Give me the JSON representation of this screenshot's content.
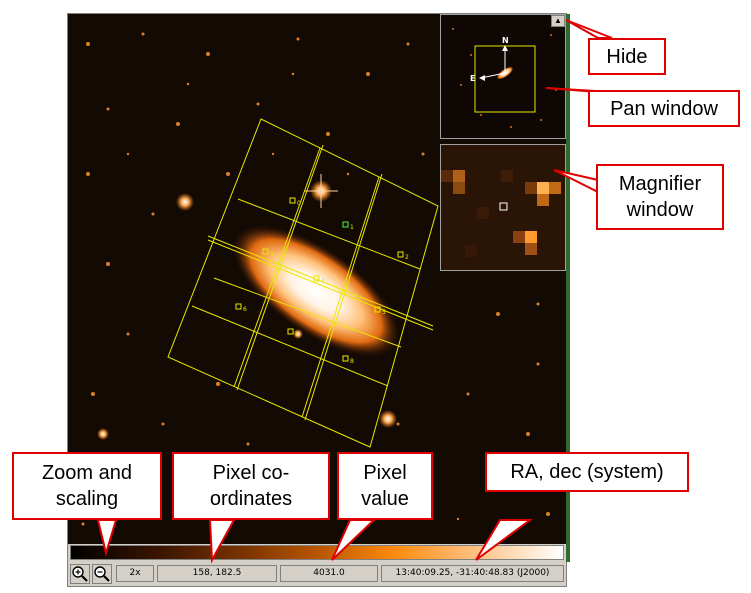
{
  "viewer": {
    "zoom_level": "2x",
    "pixel_coordinates": "158, 182.5",
    "pixel_value": "4031.0",
    "ra_dec": "13:40:09.25, -31:40:48.83 (J2000)",
    "hide_glyph": "▲"
  },
  "pan_window": {
    "north_label": "N",
    "east_label": "E"
  },
  "overlay_labels": [
    "0",
    "1",
    "2",
    "3",
    "4",
    "5",
    "6",
    "7",
    "8"
  ],
  "annotations": {
    "hide": "Hide",
    "pan_window": "Pan window",
    "magnifier_line1": "Magnifier",
    "magnifier_line2": "window",
    "zoom_line1": "Zoom and",
    "zoom_line2": "scaling",
    "pixel_coords_line1": "Pixel co-",
    "pixel_coords_line2": "ordinates",
    "pixel_value_line1": "Pixel",
    "pixel_value_line2": "value",
    "ra_dec": "RA, dec (system)"
  },
  "icons": {
    "zoom_in": "zoom-in-icon",
    "zoom_out": "zoom-out-icon"
  },
  "colors": {
    "annotation_border": "#e00000",
    "overlay_grid": "#e8e800",
    "statusbar": "#d4d0c8",
    "sky_background": "#130a04"
  }
}
